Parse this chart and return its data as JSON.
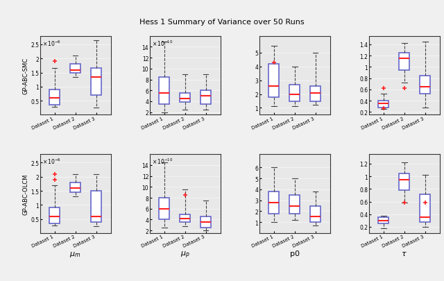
{
  "title": "Hess 1 Summary of Variance over 50 Runs",
  "row_labels": [
    "GP-ABC-SMC",
    "GP-ABC-OLCM"
  ],
  "col_xlabels_bottom": [
    "$\\mu_m$",
    "$\\mu_p$",
    "p0",
    "$\\tau$"
  ],
  "x_tick_labels": [
    "Dataset 1",
    "Dataset 2",
    "Dataset 3"
  ],
  "box_color": "#6666cc",
  "median_color": "#ff2222",
  "flier_color": "#ff2222",
  "axes_bg": "#e8e8e8",
  "row0_col0": {
    "scale": 1e-06,
    "scale_exp": -6,
    "ylim": [
      0.0,
      2.8e-06
    ],
    "yticks": [
      5e-07,
      1e-06,
      1.5e-06,
      2e-06,
      2.5e-06
    ],
    "ytick_labels": [
      "0.5",
      "1",
      "1.5",
      "2",
      "2.5"
    ],
    "data": [
      {
        "med": 6e-07,
        "q1": 3.5e-07,
        "q3": 9e-07,
        "whislo": 2.8e-07,
        "whishi": 1.65e-06,
        "fliers": [
          1.9e-06
        ]
      },
      {
        "med": 1.6e-06,
        "q1": 1.5e-06,
        "q3": 1.8e-06,
        "whislo": 1.35e-06,
        "whishi": 2.1e-06,
        "fliers": []
      },
      {
        "med": 1.35e-06,
        "q1": 7e-07,
        "q3": 1.65e-06,
        "whislo": 2.5e-07,
        "whishi": 2.65e-06,
        "fliers": []
      }
    ]
  },
  "row0_col1": {
    "scale": 1e-10,
    "scale_exp": -10,
    "ylim": [
      1.5e-10,
      1.6e-09
    ],
    "yticks": [
      2e-10,
      4e-10,
      6e-10,
      8e-10,
      1e-09,
      1.2e-09,
      1.4e-09
    ],
    "ytick_labels": [
      "2",
      "4",
      "6",
      "8",
      "10",
      "12",
      "14"
    ],
    "data": [
      {
        "med": 5.5e-10,
        "q1": 3.5e-10,
        "q3": 8.5e-10,
        "whislo": 2e-10,
        "whishi": 1.5e-09,
        "fliers": []
      },
      {
        "med": 4.5e-10,
        "q1": 3.8e-10,
        "q3": 5.5e-10,
        "whislo": 2.5e-10,
        "whishi": 9e-10,
        "fliers": []
      },
      {
        "med": 5e-10,
        "q1": 3.5e-10,
        "q3": 6e-10,
        "whislo": 2.5e-10,
        "whishi": 9e-10,
        "fliers": []
      }
    ]
  },
  "row0_col2": {
    "scale": 1.0,
    "scale_exp": 0,
    "ylim": [
      0.5,
      6.2
    ],
    "yticks": [
      1.0,
      2.0,
      3.0,
      4.0,
      5.0
    ],
    "ytick_labels": [
      "1",
      "2",
      "3",
      "4",
      "5"
    ],
    "data": [
      {
        "med": 2.6,
        "q1": 1.8,
        "q3": 4.2,
        "whislo": 1.1,
        "whishi": 5.5,
        "fliers": [
          4.3
        ]
      },
      {
        "med": 2.0,
        "q1": 1.5,
        "q3": 2.7,
        "whislo": 1.1,
        "whishi": 4.0,
        "fliers": []
      },
      {
        "med": 2.1,
        "q1": 1.5,
        "q3": 2.6,
        "whislo": 1.2,
        "whishi": 5.0,
        "fliers": []
      }
    ]
  },
  "row0_col3": {
    "scale": 1.0,
    "scale_exp": 0,
    "ylim": [
      0.15,
      1.55
    ],
    "yticks": [
      0.2,
      0.4,
      0.6,
      0.8,
      1.0,
      1.2,
      1.4
    ],
    "ytick_labels": [
      "0.2",
      "0.4",
      "0.6",
      "0.8",
      "1",
      "1.2",
      "1.4"
    ],
    "data": [
      {
        "med": 0.35,
        "q1": 0.28,
        "q3": 0.4,
        "whislo": 0.25,
        "whishi": 0.52,
        "fliers": [
          0.62,
          0.27
        ]
      },
      {
        "med": 1.15,
        "q1": 0.95,
        "q3": 1.25,
        "whislo": 0.72,
        "whishi": 1.42,
        "fliers": [
          0.62
        ]
      },
      {
        "med": 0.65,
        "q1": 0.52,
        "q3": 0.85,
        "whislo": 0.28,
        "whishi": 1.45,
        "fliers": []
      }
    ]
  },
  "row1_col0": {
    "scale": 1e-06,
    "scale_exp": -6,
    "ylim": [
      0.0,
      2.8e-06
    ],
    "yticks": [
      5e-07,
      1e-06,
      1.5e-06,
      2e-06,
      2.5e-06
    ],
    "ytick_labels": [
      "0.5",
      "1",
      "1.5",
      "2",
      "2.5"
    ],
    "data": [
      {
        "med": 6e-07,
        "q1": 3.5e-07,
        "q3": 9e-07,
        "whislo": 2.8e-07,
        "whishi": 1.7e-06,
        "fliers": [
          2.1e-06,
          1.9e-06
        ]
      },
      {
        "med": 1.6e-06,
        "q1": 1.45e-06,
        "q3": 1.8e-06,
        "whislo": 1.3e-06,
        "whishi": 2.1e-06,
        "fliers": []
      },
      {
        "med": 6e-07,
        "q1": 4e-07,
        "q3": 1.5e-06,
        "whislo": 2.5e-07,
        "whishi": 2.1e-06,
        "fliers": []
      }
    ]
  },
  "row1_col1": {
    "scale": 1e-10,
    "scale_exp": -10,
    "ylim": [
      1.5e-10,
      1.6e-09
    ],
    "yticks": [
      2e-10,
      4e-10,
      6e-10,
      8e-10,
      1e-09,
      1.2e-09,
      1.4e-09
    ],
    "ytick_labels": [
      "2",
      "4",
      "6",
      "8",
      "10",
      "12",
      "14"
    ],
    "data": [
      {
        "med": 6e-10,
        "q1": 4e-10,
        "q3": 8e-10,
        "whislo": 2.5e-10,
        "whishi": 1.45e-09,
        "fliers": []
      },
      {
        "med": 4.2e-10,
        "q1": 3.5e-10,
        "q3": 5e-10,
        "whislo": 2.8e-10,
        "whishi": 9.5e-10,
        "fliers": [
          8.5e-10
        ]
      },
      {
        "med": 3.5e-10,
        "q1": 2.5e-10,
        "q3": 4.5e-10,
        "whislo": 2e-10,
        "whishi": 7.5e-10,
        "fliers": []
      }
    ]
  },
  "row1_col2": {
    "scale": 1.0,
    "scale_exp": 0,
    "ylim": [
      0.0,
      7.2
    ],
    "yticks": [
      1.0,
      2.0,
      3.0,
      4.0,
      5.0,
      6.0
    ],
    "ytick_labels": [
      "1",
      "2",
      "3",
      "4",
      "5",
      "6"
    ],
    "data": [
      {
        "med": 2.8,
        "q1": 1.8,
        "q3": 3.8,
        "whislo": 1.0,
        "whishi": 6.0,
        "fliers": []
      },
      {
        "med": 2.5,
        "q1": 1.8,
        "q3": 3.5,
        "whislo": 1.2,
        "whishi": 5.0,
        "fliers": []
      },
      {
        "med": 1.5,
        "q1": 1.0,
        "q3": 2.5,
        "whislo": 0.7,
        "whishi": 3.8,
        "fliers": []
      }
    ]
  },
  "row1_col3": {
    "scale": 1.0,
    "scale_exp": 0,
    "ylim": [
      0.1,
      1.35
    ],
    "yticks": [
      0.2,
      0.4,
      0.6,
      0.8,
      1.0,
      1.2
    ],
    "ytick_labels": [
      "0.2",
      "0.4",
      "0.6",
      "0.8",
      "1",
      "1.2"
    ],
    "data": [
      {
        "med": 0.3,
        "q1": 0.25,
        "q3": 0.35,
        "whislo": 0.18,
        "whishi": 0.38,
        "fliers": []
      },
      {
        "med": 0.95,
        "q1": 0.78,
        "q3": 1.05,
        "whislo": 0.58,
        "whishi": 1.22,
        "fliers": [
          0.58
        ]
      },
      {
        "med": 0.35,
        "q1": 0.28,
        "q3": 0.72,
        "whislo": 0.2,
        "whishi": 1.02,
        "fliers": [
          0.58
        ]
      }
    ]
  }
}
